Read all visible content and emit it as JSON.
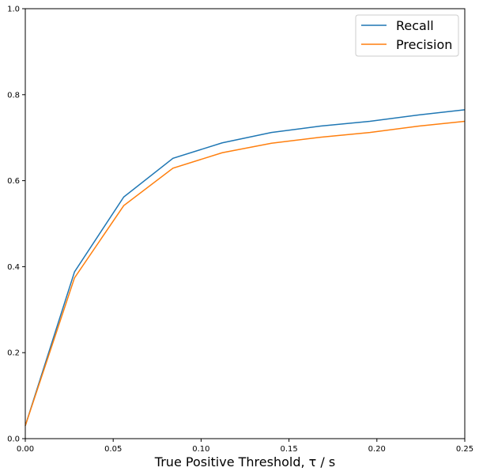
{
  "chart_data": {
    "type": "line",
    "xlabel": "True Positive Threshold, τ / s",
    "ylabel": "",
    "xlim": [
      0,
      0.25
    ],
    "ylim": [
      0,
      1.0
    ],
    "xticks": [
      "0.00",
      "0.05",
      "0.10",
      "0.15",
      "0.20",
      "0.25"
    ],
    "yticks": [
      "0.0",
      "0.2",
      "0.4",
      "0.6",
      "0.8",
      "1.0"
    ],
    "grid": false,
    "legend_position": "top-right",
    "series": [
      {
        "name": "Recall",
        "color": "#1f77b4",
        "x": [
          0.0,
          0.028,
          0.056,
          0.084,
          0.112,
          0.14,
          0.168,
          0.196,
          0.224,
          0.25
        ],
        "y": [
          0.03,
          0.388,
          0.562,
          0.652,
          0.688,
          0.712,
          0.727,
          0.738,
          0.753,
          0.765
        ]
      },
      {
        "name": "Precision",
        "color": "#ff7f0e",
        "x": [
          0.0,
          0.028,
          0.056,
          0.084,
          0.112,
          0.14,
          0.168,
          0.196,
          0.224,
          0.25
        ],
        "y": [
          0.03,
          0.374,
          0.542,
          0.629,
          0.665,
          0.687,
          0.701,
          0.712,
          0.727,
          0.738
        ]
      }
    ]
  }
}
